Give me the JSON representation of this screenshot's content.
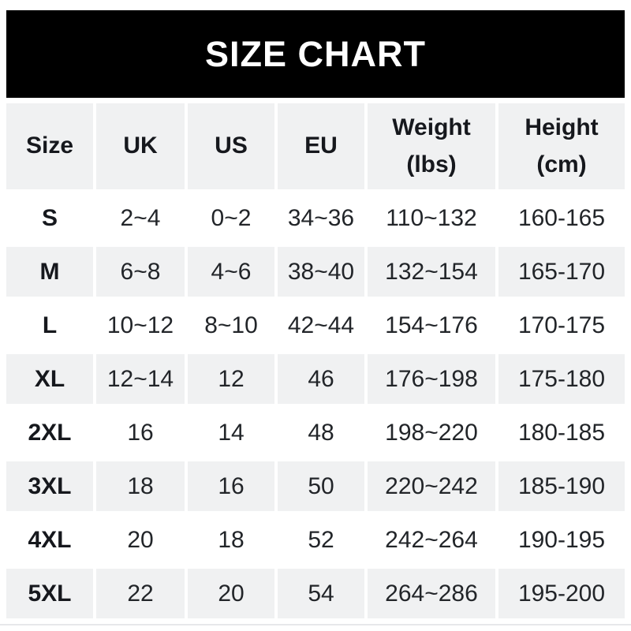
{
  "banner": {
    "title": "SIZE CHART"
  },
  "colors": {
    "banner_bg": "#000000",
    "banner_text": "#ffffff",
    "alt_row_bg": "#f0f1f2",
    "header_text": "#16181d",
    "data_text": "#222529"
  },
  "table": {
    "headers": [
      {
        "line1": "Size",
        "line2": ""
      },
      {
        "line1": "UK",
        "line2": ""
      },
      {
        "line1": "US",
        "line2": ""
      },
      {
        "line1": "EU",
        "line2": ""
      },
      {
        "line1": "Weight",
        "line2": "(lbs)"
      },
      {
        "line1": "Height",
        "line2": "(cm)"
      }
    ],
    "rows": [
      [
        "S",
        "2~4",
        "0~2",
        "34~36",
        "110~132",
        "160-165"
      ],
      [
        "M",
        "6~8",
        "4~6",
        "38~40",
        "132~154",
        "165-170"
      ],
      [
        "L",
        "10~12",
        "8~10",
        "42~44",
        "154~176",
        "170-175"
      ],
      [
        "XL",
        "12~14",
        "12",
        "46",
        "176~198",
        "175-180"
      ],
      [
        "2XL",
        "16",
        "14",
        "48",
        "198~220",
        "180-185"
      ],
      [
        "3XL",
        "18",
        "16",
        "50",
        "220~242",
        "185-190"
      ],
      [
        "4XL",
        "20",
        "18",
        "52",
        "242~264",
        "190-195"
      ],
      [
        "5XL",
        "22",
        "20",
        "54",
        "264~286",
        "195-200"
      ]
    ]
  }
}
